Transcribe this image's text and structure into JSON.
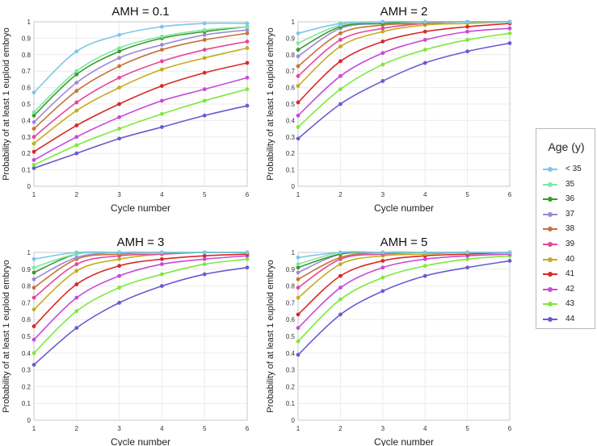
{
  "figure": {
    "legend_title": "Age (y)",
    "legend": [
      {
        "label": "< 35",
        "color": "#7ec5ea"
      },
      {
        "label": "35",
        "color": "#7fe8a3"
      },
      {
        "label": "36",
        "color": "#3a9a2a"
      },
      {
        "label": "37",
        "color": "#9d8ad8"
      },
      {
        "label": "38",
        "color": "#c4743a"
      },
      {
        "label": "39",
        "color": "#e2489a"
      },
      {
        "label": "40",
        "color": "#c4ac20"
      },
      {
        "label": "41",
        "color": "#d82828"
      },
      {
        "label": "42",
        "color": "#c64ad8"
      },
      {
        "label": "43",
        "color": "#7ee83a"
      },
      {
        "label": "44",
        "color": "#6a5ad0"
      }
    ]
  },
  "chart_data": [
    {
      "type": "line",
      "title": "AMH = 0.1",
      "xlabel": "Cycle number",
      "ylabel": "Probability of at least 1 euploid embryo",
      "xlim": [
        1,
        6
      ],
      "ylim": [
        0,
        1
      ],
      "xticks": [
        "1",
        "2",
        "3",
        "4",
        "5",
        "6"
      ],
      "yticks": [
        "0",
        "0.1",
        "0.2",
        "0.3",
        "0.4",
        "0.5",
        "0.6",
        "0.7",
        "0.8",
        "0.9",
        "1"
      ],
      "x": [
        1,
        2,
        3,
        4,
        5,
        6
      ],
      "series": [
        {
          "name": "< 35",
          "values": [
            0.57,
            0.82,
            0.92,
            0.97,
            0.99,
            0.99
          ]
        },
        {
          "name": "35",
          "values": [
            0.45,
            0.7,
            0.84,
            0.91,
            0.95,
            0.97
          ]
        },
        {
          "name": "36",
          "values": [
            0.43,
            0.68,
            0.82,
            0.9,
            0.94,
            0.97
          ]
        },
        {
          "name": "37",
          "values": [
            0.39,
            0.63,
            0.78,
            0.86,
            0.92,
            0.95
          ]
        },
        {
          "name": "38",
          "values": [
            0.35,
            0.58,
            0.73,
            0.83,
            0.89,
            0.93
          ]
        },
        {
          "name": "39",
          "values": [
            0.3,
            0.51,
            0.66,
            0.76,
            0.83,
            0.88
          ]
        },
        {
          "name": "40",
          "values": [
            0.26,
            0.46,
            0.6,
            0.71,
            0.78,
            0.84
          ]
        },
        {
          "name": "41",
          "values": [
            0.21,
            0.37,
            0.5,
            0.61,
            0.69,
            0.75
          ]
        },
        {
          "name": "42",
          "values": [
            0.16,
            0.3,
            0.42,
            0.52,
            0.59,
            0.66
          ]
        },
        {
          "name": "43",
          "values": [
            0.13,
            0.25,
            0.35,
            0.44,
            0.52,
            0.59
          ]
        },
        {
          "name": "44",
          "values": [
            0.11,
            0.2,
            0.29,
            0.36,
            0.43,
            0.49
          ]
        }
      ]
    },
    {
      "type": "line",
      "title": "AMH = 2",
      "xlabel": "Cycle number",
      "ylabel": "Probability of at least 1 euploid embryo",
      "xlim": [
        1,
        6
      ],
      "ylim": [
        0,
        1
      ],
      "xticks": [
        "1",
        "2",
        "3",
        "4",
        "5",
        "6"
      ],
      "yticks": [
        "0",
        "0.1",
        "0.2",
        "0.3",
        "0.4",
        "0.5",
        "0.6",
        "0.7",
        "0.8",
        "0.9",
        "1"
      ],
      "x": [
        1,
        2,
        3,
        4,
        5,
        6
      ],
      "series": [
        {
          "name": "< 35",
          "values": [
            0.93,
            0.99,
            1.0,
            1.0,
            1.0,
            1.0
          ]
        },
        {
          "name": "35",
          "values": [
            0.87,
            0.98,
            1.0,
            1.0,
            1.0,
            1.0
          ]
        },
        {
          "name": "36",
          "values": [
            0.83,
            0.97,
            0.99,
            1.0,
            1.0,
            1.0
          ]
        },
        {
          "name": "37",
          "values": [
            0.79,
            0.96,
            0.99,
            1.0,
            1.0,
            1.0
          ]
        },
        {
          "name": "38",
          "values": [
            0.73,
            0.93,
            0.98,
            0.99,
            1.0,
            1.0
          ]
        },
        {
          "name": "39",
          "values": [
            0.67,
            0.89,
            0.96,
            0.99,
            1.0,
            1.0
          ]
        },
        {
          "name": "40",
          "values": [
            0.61,
            0.85,
            0.94,
            0.98,
            0.99,
            1.0
          ]
        },
        {
          "name": "41",
          "values": [
            0.51,
            0.76,
            0.88,
            0.94,
            0.97,
            0.99
          ]
        },
        {
          "name": "42",
          "values": [
            0.43,
            0.67,
            0.81,
            0.89,
            0.94,
            0.96
          ]
        },
        {
          "name": "43",
          "values": [
            0.36,
            0.59,
            0.74,
            0.83,
            0.89,
            0.93
          ]
        },
        {
          "name": "44",
          "values": [
            0.29,
            0.5,
            0.64,
            0.75,
            0.82,
            0.87
          ]
        }
      ]
    },
    {
      "type": "line",
      "title": "AMH = 3",
      "xlabel": "Cycle number",
      "ylabel": "Probability of at least 1 euploid embryo",
      "xlim": [
        1,
        6
      ],
      "ylim": [
        0,
        1
      ],
      "xticks": [
        "1",
        "2",
        "3",
        "4",
        "5",
        "6"
      ],
      "yticks": [
        "0",
        "0.1",
        "0.2",
        "0.3",
        "0.4",
        "0.5",
        "0.6",
        "0.7",
        "0.8",
        "0.9",
        "1"
      ],
      "x": [
        1,
        2,
        3,
        4,
        5,
        6
      ],
      "series": [
        {
          "name": "< 35",
          "values": [
            0.96,
            1.0,
            1.0,
            1.0,
            1.0,
            1.0
          ]
        },
        {
          "name": "35",
          "values": [
            0.91,
            0.99,
            1.0,
            1.0,
            1.0,
            1.0
          ]
        },
        {
          "name": "36",
          "values": [
            0.88,
            0.99,
            1.0,
            1.0,
            1.0,
            1.0
          ]
        },
        {
          "name": "37",
          "values": [
            0.84,
            0.97,
            1.0,
            1.0,
            1.0,
            1.0
          ]
        },
        {
          "name": "38",
          "values": [
            0.79,
            0.96,
            0.99,
            1.0,
            1.0,
            1.0
          ]
        },
        {
          "name": "39",
          "values": [
            0.73,
            0.93,
            0.98,
            0.99,
            1.0,
            1.0
          ]
        },
        {
          "name": "40",
          "values": [
            0.66,
            0.89,
            0.96,
            0.99,
            1.0,
            1.0
          ]
        },
        {
          "name": "41",
          "values": [
            0.56,
            0.81,
            0.92,
            0.96,
            0.98,
            0.99
          ]
        },
        {
          "name": "42",
          "values": [
            0.48,
            0.73,
            0.86,
            0.93,
            0.96,
            0.98
          ]
        },
        {
          "name": "43",
          "values": [
            0.4,
            0.65,
            0.79,
            0.87,
            0.93,
            0.96
          ]
        },
        {
          "name": "44",
          "values": [
            0.33,
            0.55,
            0.7,
            0.8,
            0.87,
            0.91
          ]
        }
      ]
    },
    {
      "type": "line",
      "title": "AMH = 5",
      "xlabel": "Cycle number",
      "ylabel": "Probability of at least 1 euploid embryo",
      "xlim": [
        1,
        6
      ],
      "ylim": [
        0,
        1
      ],
      "xticks": [
        "1",
        "2",
        "3",
        "4",
        "5",
        "6"
      ],
      "yticks": [
        "0",
        "0.1",
        "0.2",
        "0.3",
        "0.4",
        "0.5",
        "0.6",
        "0.7",
        "0.8",
        "0.9",
        "1"
      ],
      "x": [
        1,
        2,
        3,
        4,
        5,
        6
      ],
      "series": [
        {
          "name": "< 35",
          "values": [
            0.97,
            1.0,
            1.0,
            1.0,
            1.0,
            1.0
          ]
        },
        {
          "name": "35",
          "values": [
            0.93,
            1.0,
            1.0,
            1.0,
            1.0,
            1.0
          ]
        },
        {
          "name": "36",
          "values": [
            0.91,
            0.99,
            1.0,
            1.0,
            1.0,
            1.0
          ]
        },
        {
          "name": "37",
          "values": [
            0.88,
            0.99,
            1.0,
            1.0,
            1.0,
            1.0
          ]
        },
        {
          "name": "38",
          "values": [
            0.84,
            0.97,
            1.0,
            1.0,
            1.0,
            1.0
          ]
        },
        {
          "name": "39",
          "values": [
            0.79,
            0.96,
            0.99,
            1.0,
            1.0,
            1.0
          ]
        },
        {
          "name": "40",
          "values": [
            0.73,
            0.93,
            0.98,
            0.99,
            1.0,
            1.0
          ]
        },
        {
          "name": "41",
          "values": [
            0.63,
            0.86,
            0.95,
            0.98,
            0.99,
            1.0
          ]
        },
        {
          "name": "42",
          "values": [
            0.55,
            0.79,
            0.91,
            0.96,
            0.98,
            0.99
          ]
        },
        {
          "name": "43",
          "values": [
            0.47,
            0.72,
            0.85,
            0.92,
            0.96,
            0.98
          ]
        },
        {
          "name": "44",
          "values": [
            0.39,
            0.63,
            0.77,
            0.86,
            0.91,
            0.95
          ]
        }
      ]
    }
  ]
}
